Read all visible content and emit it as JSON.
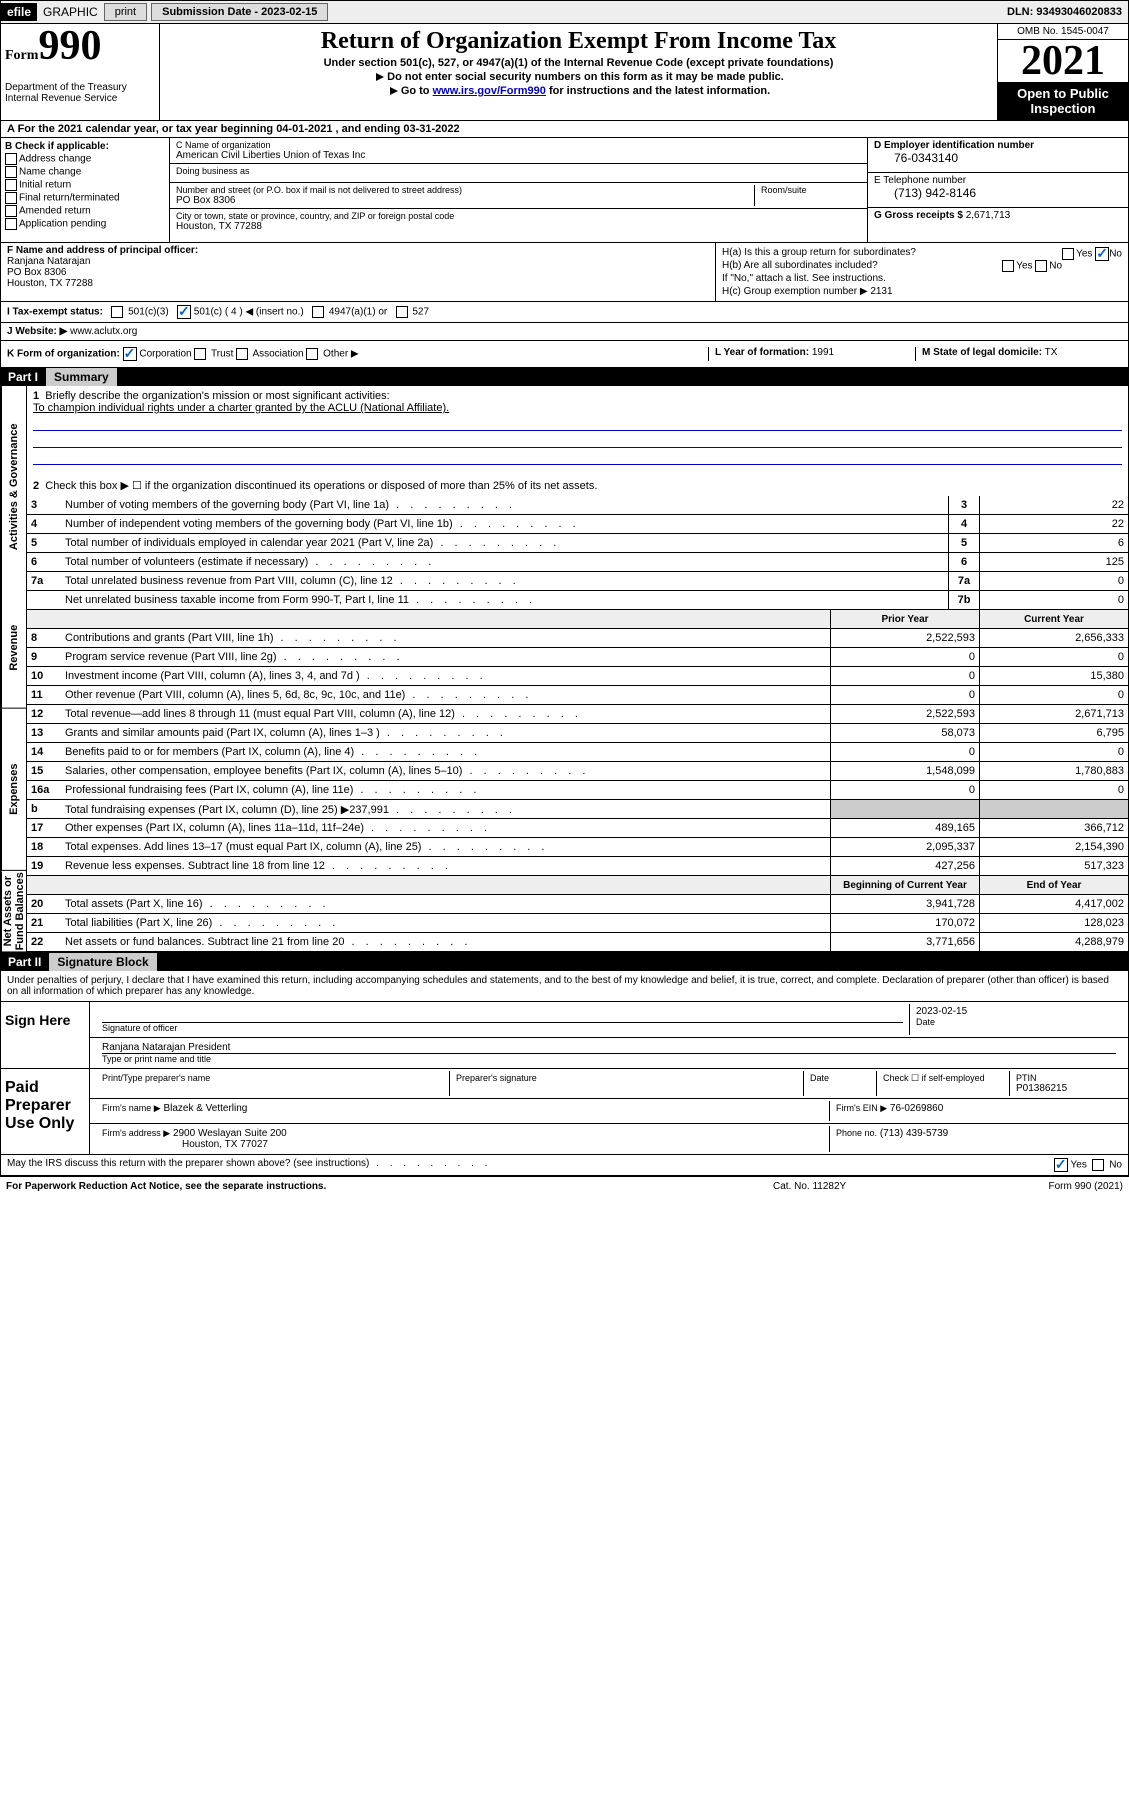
{
  "topbar": {
    "efile": "efile",
    "graphic": "GRAPHIC",
    "print": "print",
    "sub_date": "Submission Date - 2023-02-15",
    "dln": "DLN: 93493046020833"
  },
  "header": {
    "form_word": "Form",
    "form_num": "990",
    "dept": "Department of the Treasury",
    "irs": "Internal Revenue Service",
    "title": "Return of Organization Exempt From Income Tax",
    "sub1": "Under section 501(c), 527, or 4947(a)(1) of the Internal Revenue Code (except private foundations)",
    "sub2": "Do not enter social security numbers on this form as it may be made public.",
    "sub3_pre": "Go to ",
    "sub3_link": "www.irs.gov/Form990",
    "sub3_post": " for instructions and the latest information.",
    "omb": "OMB No. 1545-0047",
    "year": "2021",
    "open": "Open to Public Inspection"
  },
  "section_a": "A For the 2021 calendar year, or tax year beginning 04-01-2021   , and ending 03-31-2022",
  "col_b": {
    "header": "B Check if applicable:",
    "items": [
      "Address change",
      "Name change",
      "Initial return",
      "Final return/terminated",
      "Amended return",
      "Application pending"
    ]
  },
  "col_c": {
    "name_lbl": "C Name of organization",
    "name": "American Civil Liberties Union of Texas Inc",
    "dba_lbl": "Doing business as",
    "dba": "",
    "addr_lbl": "Number and street (or P.O. box if mail is not delivered to street address)",
    "room_lbl": "Room/suite",
    "addr": "PO Box 8306",
    "city_lbl": "City or town, state or province, country, and ZIP or foreign postal code",
    "city": "Houston, TX  77288"
  },
  "col_d": {
    "ein_lbl": "D Employer identification number",
    "ein": "76-0343140",
    "tel_lbl": "E Telephone number",
    "tel": "(713) 942-8146",
    "gross_lbl": "G Gross receipts $",
    "gross": "2,671,713"
  },
  "row_f": {
    "lbl": "F Name and address of principal officer:",
    "name": "Ranjana Natarajan",
    "addr": "PO Box 8306",
    "city": "Houston, TX  77288"
  },
  "row_h": {
    "ha": "H(a)  Is this a group return for subordinates?",
    "hb": "H(b)  Are all subordinates included?",
    "hb_note": "If \"No,\" attach a list. See instructions.",
    "hc": "H(c)  Group exemption number ▶",
    "hc_val": "2131",
    "yes": "Yes",
    "no": "No"
  },
  "row_i": {
    "lbl": "I   Tax-exempt status:",
    "o1": "501(c)(3)",
    "o2": "501(c) ( 4 ) ◀ (insert no.)",
    "o3": "4947(a)(1) or",
    "o4": "527"
  },
  "row_j": {
    "lbl": "J   Website: ▶",
    "val": "www.aclutx.org"
  },
  "row_k": {
    "lbl": "K Form of organization:",
    "o1": "Corporation",
    "o2": "Trust",
    "o3": "Association",
    "o4": "Other ▶",
    "l_lbl": "L Year of formation:",
    "l_val": "1991",
    "m_lbl": "M State of legal domicile:",
    "m_val": "TX"
  },
  "part1": {
    "num": "Part I",
    "title": "Summary",
    "q1": "Briefly describe the organization's mission or most significant activities:",
    "q1_ans": "To champion individual rights under a charter granted by the ACLU (National Affiliate).",
    "q2": "Check this box ▶ ☐  if the organization discontinued its operations or disposed of more than 25% of its net assets.",
    "vert1": "Activities & Governance",
    "vert2": "Revenue",
    "vert3": "Expenses",
    "vert4": "Net Assets or Fund Balances",
    "prior": "Prior Year",
    "current": "Current Year",
    "begin": "Beginning of Current Year",
    "end": "End of Year",
    "rows_top": [
      {
        "n": "3",
        "d": "Number of voting members of the governing body (Part VI, line 1a)",
        "b": "3",
        "v": "22"
      },
      {
        "n": "4",
        "d": "Number of independent voting members of the governing body (Part VI, line 1b)",
        "b": "4",
        "v": "22"
      },
      {
        "n": "5",
        "d": "Total number of individuals employed in calendar year 2021 (Part V, line 2a)",
        "b": "5",
        "v": "6"
      },
      {
        "n": "6",
        "d": "Total number of volunteers (estimate if necessary)",
        "b": "6",
        "v": "125"
      },
      {
        "n": "7a",
        "d": "Total unrelated business revenue from Part VIII, column (C), line 12",
        "b": "7a",
        "v": "0"
      },
      {
        "n": "",
        "d": "Net unrelated business taxable income from Form 990-T, Part I, line 11",
        "b": "7b",
        "v": "0"
      }
    ],
    "rows_rev": [
      {
        "n": "8",
        "d": "Contributions and grants (Part VIII, line 1h)",
        "v1": "2,522,593",
        "v2": "2,656,333"
      },
      {
        "n": "9",
        "d": "Program service revenue (Part VIII, line 2g)",
        "v1": "0",
        "v2": "0"
      },
      {
        "n": "10",
        "d": "Investment income (Part VIII, column (A), lines 3, 4, and 7d )",
        "v1": "0",
        "v2": "15,380"
      },
      {
        "n": "11",
        "d": "Other revenue (Part VIII, column (A), lines 5, 6d, 8c, 9c, 10c, and 11e)",
        "v1": "0",
        "v2": "0"
      },
      {
        "n": "12",
        "d": "Total revenue—add lines 8 through 11 (must equal Part VIII, column (A), line 12)",
        "v1": "2,522,593",
        "v2": "2,671,713"
      }
    ],
    "rows_exp": [
      {
        "n": "13",
        "d": "Grants and similar amounts paid (Part IX, column (A), lines 1–3 )",
        "v1": "58,073",
        "v2": "6,795"
      },
      {
        "n": "14",
        "d": "Benefits paid to or for members (Part IX, column (A), line 4)",
        "v1": "0",
        "v2": "0"
      },
      {
        "n": "15",
        "d": "Salaries, other compensation, employee benefits (Part IX, column (A), lines 5–10)",
        "v1": "1,548,099",
        "v2": "1,780,883"
      },
      {
        "n": "16a",
        "d": "Professional fundraising fees (Part IX, column (A), line 11e)",
        "v1": "0",
        "v2": "0"
      },
      {
        "n": "b",
        "d": "Total fundraising expenses (Part IX, column (D), line 25) ▶237,991",
        "v1": "",
        "v2": "",
        "shade": true
      },
      {
        "n": "17",
        "d": "Other expenses (Part IX, column (A), lines 11a–11d, 11f–24e)",
        "v1": "489,165",
        "v2": "366,712"
      },
      {
        "n": "18",
        "d": "Total expenses. Add lines 13–17 (must equal Part IX, column (A), line 25)",
        "v1": "2,095,337",
        "v2": "2,154,390"
      },
      {
        "n": "19",
        "d": "Revenue less expenses. Subtract line 18 from line 12",
        "v1": "427,256",
        "v2": "517,323"
      }
    ],
    "rows_net": [
      {
        "n": "20",
        "d": "Total assets (Part X, line 16)",
        "v1": "3,941,728",
        "v2": "4,417,002"
      },
      {
        "n": "21",
        "d": "Total liabilities (Part X, line 26)",
        "v1": "170,072",
        "v2": "128,023"
      },
      {
        "n": "22",
        "d": "Net assets or fund balances. Subtract line 21 from line 20",
        "v1": "3,771,656",
        "v2": "4,288,979"
      }
    ]
  },
  "part2": {
    "num": "Part II",
    "title": "Signature Block",
    "decl": "Under penalties of perjury, I declare that I have examined this return, including accompanying schedules and statements, and to the best of my knowledge and belief, it is true, correct, and complete. Declaration of preparer (other than officer) is based on all information of which preparer has any knowledge.",
    "sign_here": "Sign Here",
    "sig_officer": "Signature of officer",
    "date_lbl": "Date",
    "date": "2023-02-15",
    "name_title": "Ranjana Natarajan President",
    "name_title_lbl": "Type or print name and title",
    "paid": "Paid Preparer Use Only",
    "prep_name_lbl": "Print/Type preparer's name",
    "prep_sig_lbl": "Preparer's signature",
    "check_self": "Check ☐ if self-employed",
    "ptin_lbl": "PTIN",
    "ptin": "P01386215",
    "firm_name_lbl": "Firm's name   ▶",
    "firm_name": "Blazek & Vetterling",
    "firm_ein_lbl": "Firm's EIN ▶",
    "firm_ein": "76-0269860",
    "firm_addr_lbl": "Firm's address ▶",
    "firm_addr": "2900 Weslayan Suite 200",
    "firm_city": "Houston, TX  77027",
    "phone_lbl": "Phone no.",
    "phone": "(713) 439-5739",
    "may_discuss": "May the IRS discuss this return with the preparer shown above? (see instructions)"
  },
  "footer": {
    "left": "For Paperwork Reduction Act Notice, see the separate instructions.",
    "mid": "Cat. No. 11282Y",
    "right": "Form 990 (2021)"
  }
}
